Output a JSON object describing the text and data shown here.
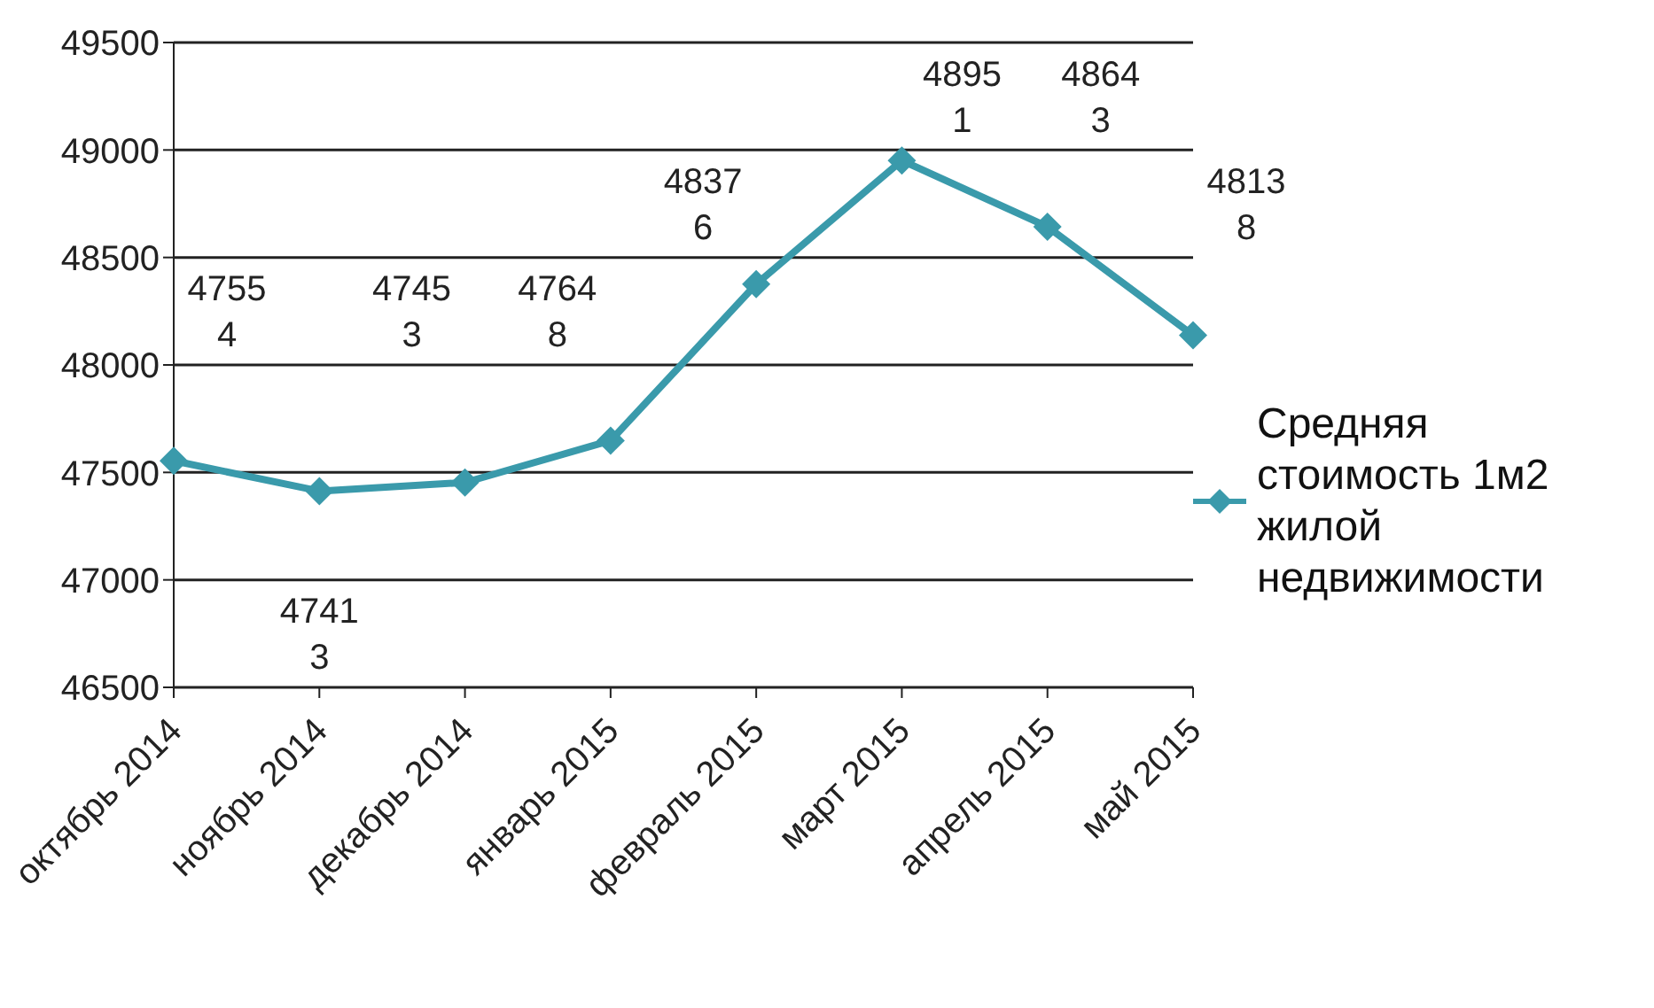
{
  "chart_data": {
    "type": "line",
    "categories": [
      "октябрь 2014",
      "ноябрь 2014",
      "декабрь 2014",
      "январь 2015",
      "февраль 2015",
      "март 2015",
      "апрель 2015",
      "май 2015"
    ],
    "series": [
      {
        "name": "Средняя стоимость 1м2 жилой недвижимости",
        "color": "#3a9aab",
        "values": [
          47554,
          47413,
          47453,
          47648,
          48376,
          48951,
          48643,
          48138
        ]
      }
    ],
    "ylim": [
      46500,
      49500
    ],
    "yticks": [
      46500,
      47000,
      47500,
      48000,
      48500,
      49000,
      49500
    ],
    "grid": "y",
    "legend": "right",
    "marker": "diamond",
    "line_style": "solid",
    "data_labels": true
  }
}
